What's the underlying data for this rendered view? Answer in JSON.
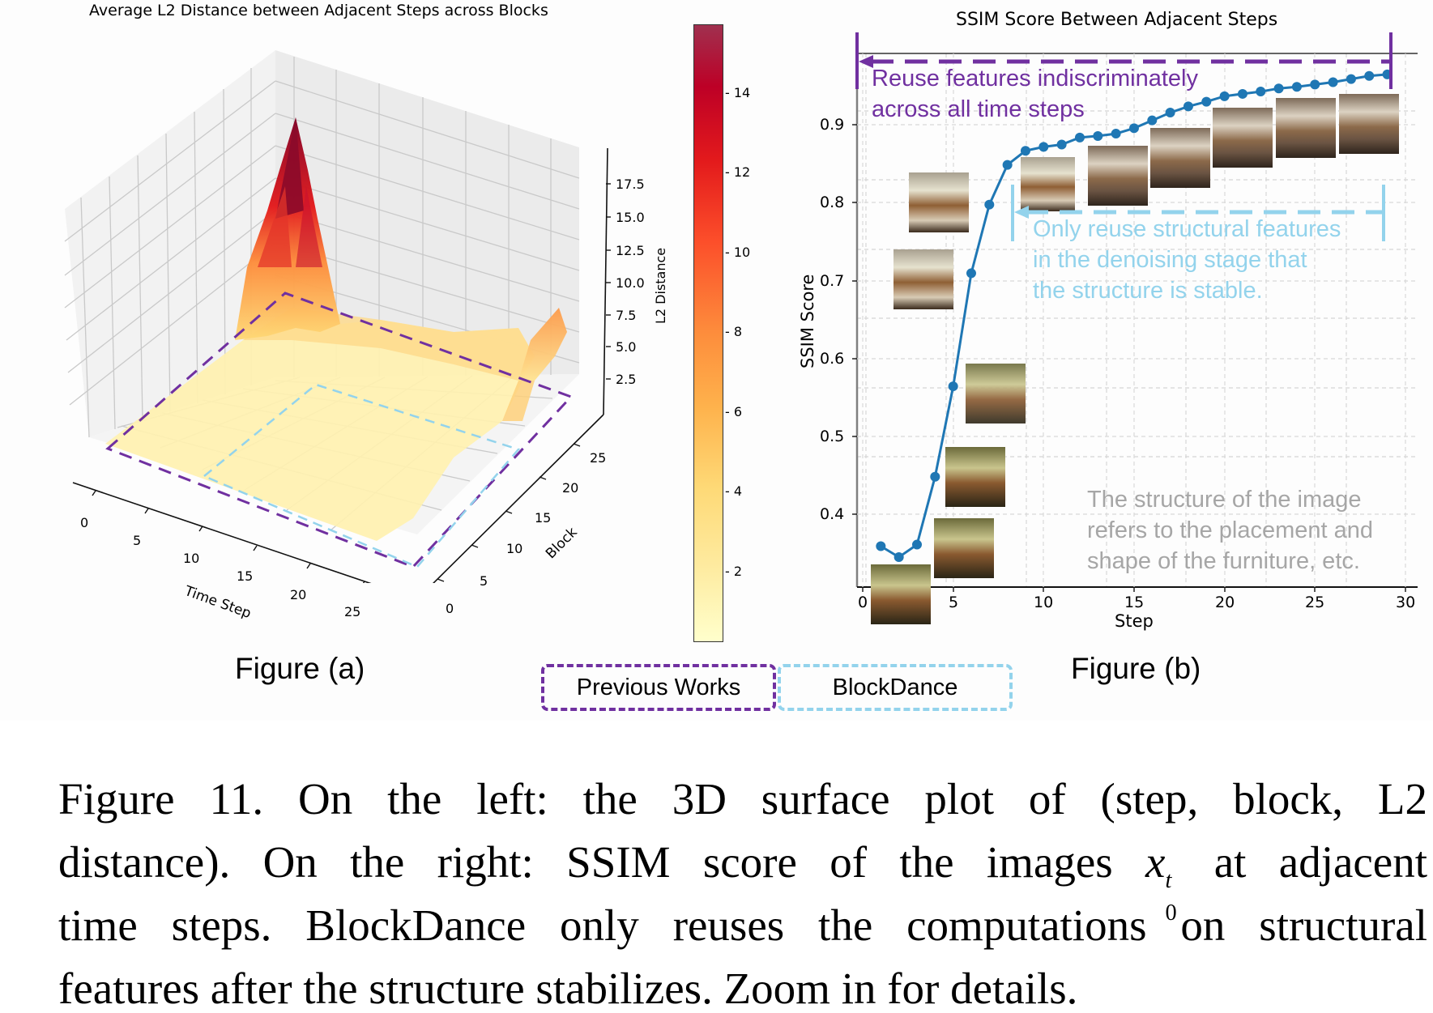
{
  "figure_a": {
    "title": "Average L2 Distance between Adjacent Steps across Blocks",
    "label": "Figure (a)",
    "xlabel": "Time Step",
    "ylabel": "Block",
    "zlabel": "L2 Distance",
    "x_ticks": [
      "0",
      "5",
      "10",
      "15",
      "20",
      "25"
    ],
    "y_ticks": [
      "0",
      "5",
      "10",
      "15",
      "20",
      "25"
    ],
    "z_ticks": [
      "2.5",
      "5.0",
      "7.5",
      "10.0",
      "12.5",
      "15.0",
      "17.5"
    ],
    "colorbar_ticks": [
      "2",
      "4",
      "6",
      "8",
      "10",
      "12",
      "14"
    ]
  },
  "figure_b": {
    "title": "SSIM Score Between Adjacent Steps",
    "label": "Figure (b)",
    "xlabel": "Step",
    "ylabel": "SSIM Score",
    "x_ticks": [
      "0",
      "5",
      "10",
      "15",
      "20",
      "25",
      "30"
    ],
    "y_ticks": [
      "0.4",
      "0.5",
      "0.6",
      "0.7",
      "0.8",
      "0.9"
    ],
    "annotation_previous": [
      "Reuse features indiscriminately",
      "across all time steps"
    ],
    "annotation_blockdance": [
      "Only reuse structural features",
      "in the denoising stage that",
      "the structure is stable."
    ],
    "annotation_structure": [
      "The structure of the image",
      "refers to the placement and",
      "shape of the furniture, etc."
    ]
  },
  "legend": {
    "previous_works": "Previous Works",
    "blockdance": "BlockDance"
  },
  "colors": {
    "previous_works": "#7030a0",
    "blockdance": "#93d3ec",
    "ssim_line": "#1f77b4",
    "structure_note": "#a6a6a6",
    "colormap_low": "#ffffcc",
    "colormap_mid": "#fd8d3c",
    "colormap_high": "#800026"
  },
  "caption": {
    "line1": "Figure 11.  On the left:  the 3D surface plot of (step, block, L2",
    "line2_a": "distance). On the right: SSIM score of the images ",
    "line2_math_base": "x",
    "line2_math_sub": "0",
    "line2_math_sup": "t",
    "line2_b": " at adjacent",
    "line3": "time steps. BlockDance only reuses the computations on structural",
    "line4": "features after the structure stabilizes. Zoom in for details."
  },
  "chart_data": [
    {
      "type": "surface3d",
      "title": "Average L2 Distance between Adjacent Steps across Blocks",
      "xlabel": "Time Step",
      "ylabel": "Block",
      "zlabel": "L2 Distance",
      "xlim": [
        0,
        29
      ],
      "ylim": [
        0,
        28
      ],
      "zlim": [
        0,
        19
      ],
      "colorbar": {
        "min": 0.3,
        "max": 15.5,
        "ticks": [
          2,
          4,
          6,
          8,
          10,
          12,
          14
        ],
        "cmap": "YlOrRd"
      },
      "description": "Sharp peak (~17.5-18) at early time steps (step ~0-2) in middle-to-high blocks; secondary ridge (~7) at late blocks near the final time steps; near-zero plateau elsewhere.",
      "regions": [
        {
          "name": "Previous Works",
          "style": "purple dashed",
          "time_step_range": [
            0,
            29
          ],
          "block_range": [
            0,
            28
          ]
        },
        {
          "name": "BlockDance",
          "style": "light-blue dashed",
          "time_step_range": [
            10,
            28
          ],
          "block_range": [
            0,
            20
          ]
        }
      ]
    },
    {
      "type": "line",
      "title": "SSIM Score Between Adjacent Steps",
      "xlabel": "Step",
      "ylabel": "SSIM Score",
      "xlim": [
        -0.5,
        30
      ],
      "ylim": [
        0.32,
        0.99
      ],
      "grid": true,
      "x": [
        1,
        2,
        3,
        4,
        5,
        6,
        7,
        8,
        9,
        10,
        11,
        12,
        13,
        14,
        15,
        16,
        17,
        18,
        19,
        20,
        21,
        22,
        23,
        24,
        25,
        26,
        27,
        28,
        29
      ],
      "values": [
        0.359,
        0.345,
        0.361,
        0.448,
        0.564,
        0.709,
        0.797,
        0.848,
        0.866,
        0.871,
        0.874,
        0.883,
        0.885,
        0.888,
        0.895,
        0.905,
        0.915,
        0.923,
        0.929,
        0.936,
        0.939,
        0.942,
        0.946,
        0.948,
        0.951,
        0.954,
        0.958,
        0.962,
        0.964
      ],
      "annotations": [
        {
          "text": "Reuse features indiscriminately across all time steps",
          "span_steps": [
            0,
            29
          ],
          "color": "#7030a0"
        },
        {
          "text": "Only reuse structural features in the denoising stage that the structure is stable.",
          "span_steps": [
            8,
            29
          ],
          "color": "#93d3ec"
        },
        {
          "text": "The structure of the image refers to the placement and shape of the furniture, etc.",
          "color": "#a6a6a6"
        }
      ]
    }
  ]
}
